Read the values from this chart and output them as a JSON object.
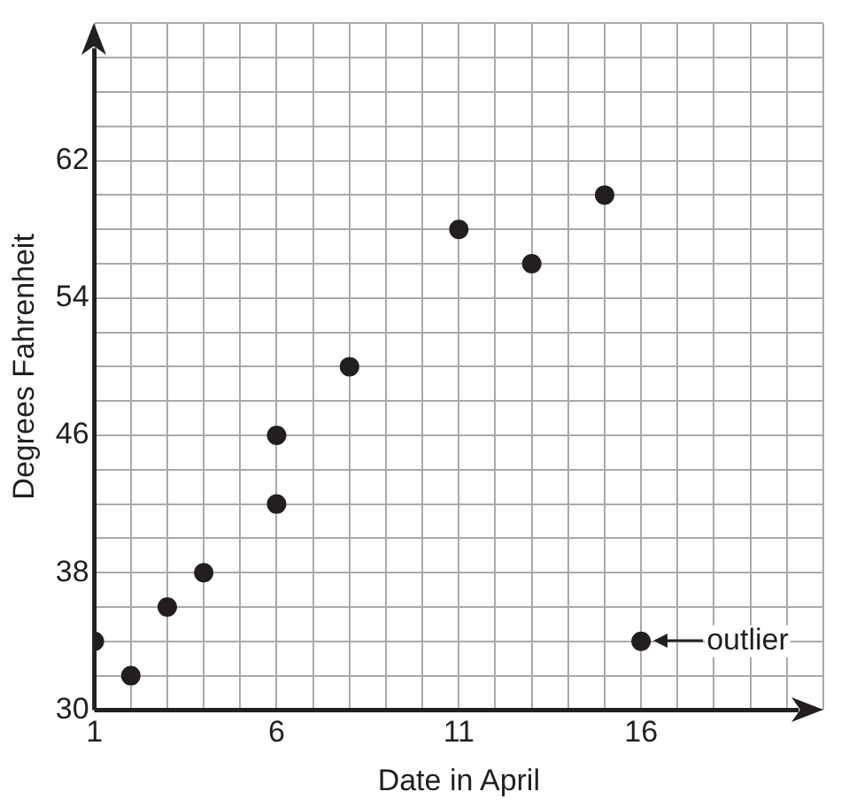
{
  "chart_data": {
    "type": "scatter",
    "xlabel": "Date in April",
    "ylabel": "Degrees Fahrenheit",
    "x": [
      1,
      2,
      3,
      4,
      6,
      6,
      8,
      11,
      13,
      15,
      16
    ],
    "series": [
      {
        "color": "#231f20",
        "values": [
          34,
          32,
          36,
          38,
          42,
          46,
          50,
          58,
          56,
          60,
          34
        ]
      }
    ],
    "xlim": [
      1,
      21
    ],
    "xticks": [
      1,
      {
        "value": 2,
        "label": null
      },
      {
        "value": 3,
        "label": null
      },
      {
        "value": 4,
        "label": null
      },
      {
        "value": 5,
        "label": null
      },
      6,
      {
        "value": 7,
        "label": null
      },
      {
        "value": 8,
        "label": null
      },
      {
        "value": 9,
        "label": null
      },
      {
        "value": 10,
        "label": null
      },
      11,
      {
        "value": 12,
        "label": null
      },
      {
        "value": 13,
        "label": null
      },
      {
        "value": 14,
        "label": null
      },
      {
        "value": 15,
        "label": null
      },
      16,
      {
        "value": 17,
        "label": null
      },
      {
        "value": 18,
        "label": null
      },
      {
        "value": 19,
        "label": null
      },
      {
        "value": 20,
        "label": null
      },
      {
        "value": 21,
        "label": null
      }
    ],
    "ylim": [
      30,
      70
    ],
    "yticks": [
      30,
      {
        "value": 32,
        "label": null
      },
      {
        "value": 34,
        "label": null
      },
      {
        "value": 36,
        "label": null
      },
      38,
      {
        "value": 40,
        "label": null
      },
      {
        "value": 42,
        "label": null
      },
      {
        "value": 44,
        "label": null
      },
      46,
      {
        "value": 48,
        "label": null
      },
      {
        "value": 50,
        "label": null
      },
      {
        "value": 52,
        "label": null
      },
      54,
      {
        "value": 56,
        "label": null
      },
      {
        "value": 58,
        "label": null
      },
      {
        "value": 60,
        "label": null
      },
      62,
      {
        "value": 64,
        "label": null
      },
      {
        "value": 66,
        "label": null
      },
      {
        "value": 68,
        "label": null
      },
      {
        "value": 70,
        "label": null
      }
    ],
    "grid": true,
    "marker": "circle",
    "legend": false,
    "annotations": [
      {
        "text": "outlier",
        "x": 16,
        "y": 34
      }
    ]
  }
}
